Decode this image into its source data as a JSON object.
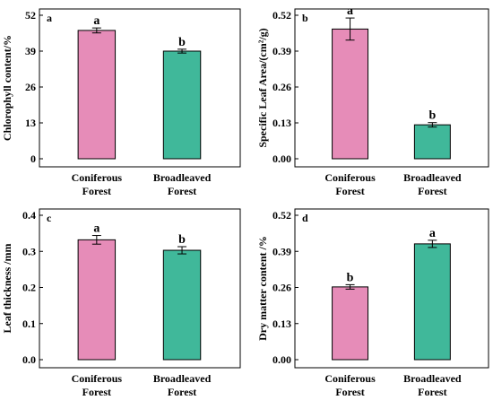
{
  "colors": {
    "coniferous": "#e68cb8",
    "broadleaved": "#40b89a",
    "axis": "#000000"
  },
  "chart_data": [
    {
      "type": "bar",
      "panel_label": "a",
      "ylabel": "Chlorophyll content/%",
      "categories": [
        "Coniferous\nForest",
        "Broadleaved\nForest"
      ],
      "values": [
        46.5,
        39.0
      ],
      "errors": [
        0.9,
        0.7
      ],
      "significance": [
        "a",
        "b"
      ],
      "ylim": [
        0,
        52
      ],
      "yticks": [
        0,
        13,
        26,
        39,
        52
      ],
      "ytick_labels": [
        "0",
        "13",
        "26",
        "39",
        "52"
      ]
    },
    {
      "type": "bar",
      "panel_label": "b",
      "ylabel": "Specific Leaf Area/(cm²/g)",
      "categories": [
        "Coniferous\nForest",
        "Broadleaved\nForest"
      ],
      "values": [
        0.47,
        0.123
      ],
      "errors": [
        0.04,
        0.008
      ],
      "significance": [
        "a",
        "b"
      ],
      "ylim": [
        0,
        0.52
      ],
      "yticks": [
        0,
        0.13,
        0.26,
        0.39,
        0.52
      ],
      "ytick_labels": [
        "0.00",
        "0.13",
        "0.26",
        "0.39",
        "0.52"
      ]
    },
    {
      "type": "bar",
      "panel_label": "c",
      "ylabel": "Leaf thickness /mm",
      "categories": [
        "Coniferous\nForest",
        "Broadleaved\nForest"
      ],
      "values": [
        0.332,
        0.303
      ],
      "errors": [
        0.012,
        0.01
      ],
      "significance": [
        "a",
        "b"
      ],
      "ylim": [
        0,
        0.4
      ],
      "yticks": [
        0,
        0.1,
        0.2,
        0.3,
        0.4
      ],
      "ytick_labels": [
        "0.0",
        "0.1",
        "0.2",
        "0.3",
        "0.4"
      ]
    },
    {
      "type": "bar",
      "panel_label": "d",
      "ylabel": "Dry matter content /%",
      "categories": [
        "Coniferous\nForest",
        "Broadleaved\nForest"
      ],
      "values": [
        0.262,
        0.417
      ],
      "errors": [
        0.008,
        0.013
      ],
      "significance": [
        "b",
        "a"
      ],
      "ylim": [
        0,
        0.52
      ],
      "yticks": [
        0,
        0.13,
        0.26,
        0.39,
        0.52
      ],
      "ytick_labels": [
        "0.00",
        "0.13",
        "0.26",
        "0.39",
        "0.52"
      ]
    }
  ]
}
